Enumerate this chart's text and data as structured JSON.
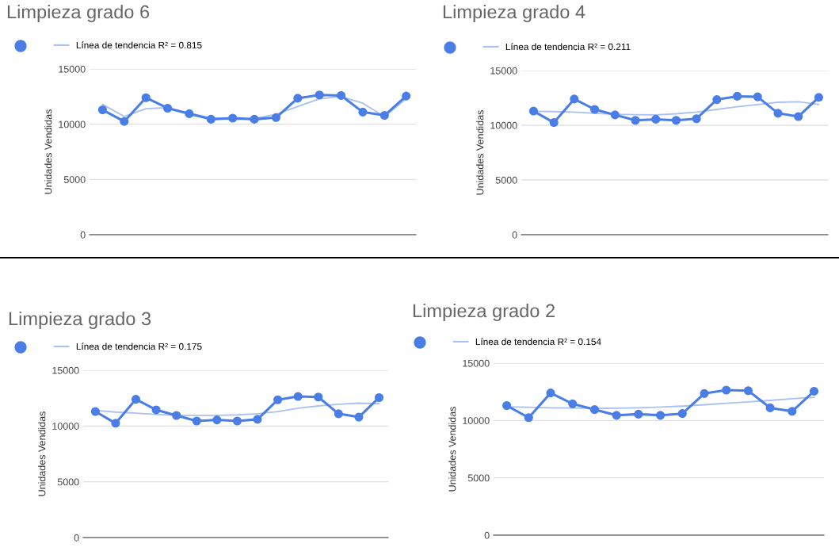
{
  "chart_data": [
    {
      "type": "line",
      "title": "Limpieza grado 6",
      "ylabel": "Unidades Vendidas",
      "categories": [
        null,
        null,
        null,
        null,
        null,
        null,
        null,
        null,
        null,
        null,
        null,
        null,
        null,
        null,
        null
      ],
      "ylim": [
        0,
        15000
      ],
      "yticks": [
        0,
        5000,
        10000,
        15000
      ],
      "grid": "y",
      "legend": "top left",
      "tick_labels": "y",
      "series": [
        {
          "color": "#4a7ee6",
          "marker": "circle",
          "values": [
            11300,
            10250,
            12400,
            11450,
            10950,
            10450,
            10550,
            10450,
            10600,
            12350,
            12650,
            12600,
            11100,
            10800,
            12550
          ]
        },
        {
          "name": "Línea de tendencia R² = 0.815",
          "color": "#a9c0f2",
          "marker": "none",
          "values": [
            11800,
            10700,
            11400,
            11500,
            11000,
            10600,
            10400,
            10500,
            10900,
            11600,
            12300,
            12500,
            11900,
            10700,
            12300
          ]
        }
      ]
    },
    {
      "type": "line",
      "title": "Limpieza grado 4",
      "ylabel": "Unidades Vendidas",
      "categories": [
        null,
        null,
        null,
        null,
        null,
        null,
        null,
        null,
        null,
        null,
        null,
        null,
        null,
        null,
        null
      ],
      "ylim": [
        0,
        15000
      ],
      "yticks": [
        0,
        5000,
        10000,
        15000
      ],
      "grid": "y",
      "legend": "top left",
      "tick_labels": "y",
      "series": [
        {
          "color": "#4a7ee6",
          "marker": "circle",
          "values": [
            11300,
            10250,
            12400,
            11450,
            10950,
            10450,
            10550,
            10450,
            10600,
            12350,
            12650,
            12600,
            11100,
            10800,
            12550
          ]
        },
        {
          "name": "Línea de tendencia R² = 0.211",
          "color": "#a9c0f2",
          "marker": "none",
          "values": [
            11280,
            11250,
            11200,
            11100,
            11000,
            10970,
            10950,
            11050,
            11200,
            11450,
            11700,
            11900,
            12100,
            12150,
            11900
          ]
        }
      ]
    },
    {
      "type": "line",
      "title": "Limpieza grado 3",
      "ylabel": "Unidades Vendidas",
      "categories": [
        null,
        null,
        null,
        null,
        null,
        null,
        null,
        null,
        null,
        null,
        null,
        null,
        null,
        null,
        null
      ],
      "ylim": [
        0,
        15000
      ],
      "yticks": [
        0,
        5000,
        10000,
        15000
      ],
      "grid": "y",
      "legend": "top left",
      "tick_labels": "y",
      "series": [
        {
          "color": "#4a7ee6",
          "marker": "circle",
          "values": [
            11300,
            10250,
            12400,
            11450,
            10950,
            10450,
            10550,
            10450,
            10600,
            12350,
            12650,
            12600,
            11100,
            10800,
            12550
          ]
        },
        {
          "name": "Línea de tendencia R² = 0.175",
          "color": "#a9c0f2",
          "marker": "none",
          "values": [
            11400,
            11250,
            11150,
            11050,
            10950,
            10950,
            10950,
            11000,
            11100,
            11300,
            11600,
            11800,
            11950,
            12050,
            12000
          ]
        }
      ]
    },
    {
      "type": "line",
      "title": "Limpieza grado 2",
      "ylabel": "Unidades Vendidas",
      "categories": [
        null,
        null,
        null,
        null,
        null,
        null,
        null,
        null,
        null,
        null,
        null,
        null,
        null,
        null,
        null
      ],
      "ylim": [
        0,
        15000
      ],
      "yticks": [
        0,
        5000,
        10000,
        15000
      ],
      "grid": "y",
      "legend": "top left",
      "tick_labels": "y",
      "series": [
        {
          "color": "#4a7ee6",
          "marker": "circle",
          "values": [
            11300,
            10250,
            12400,
            11450,
            10950,
            10450,
            10550,
            10450,
            10600,
            12350,
            12650,
            12600,
            11100,
            10800,
            12550
          ]
        },
        {
          "name": "Línea de tendencia R² = 0.154",
          "color": "#a9c0f2",
          "marker": "none",
          "values": [
            11180,
            11150,
            11100,
            11080,
            11050,
            11070,
            11100,
            11170,
            11250,
            11370,
            11500,
            11620,
            11750,
            11900,
            12020
          ]
        }
      ]
    }
  ]
}
